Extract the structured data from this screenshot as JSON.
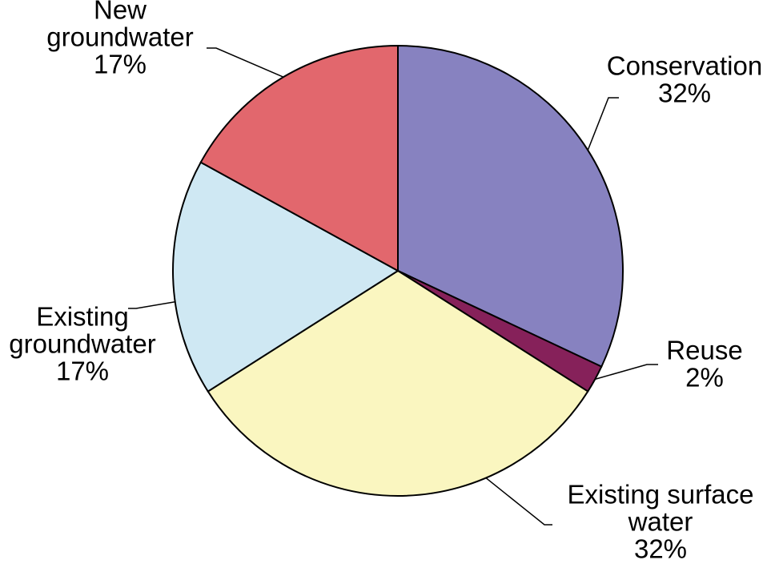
{
  "chart_data": {
    "type": "pie",
    "categories": [
      [
        "Conservation"
      ],
      [
        "Reuse"
      ],
      [
        "Existing surface",
        "water"
      ],
      [
        "Existing",
        "groundwater"
      ],
      [
        "New",
        "groundwater"
      ]
    ],
    "values": [
      32,
      2,
      32,
      17,
      17
    ],
    "value_labels": [
      "32%",
      "2%",
      "32%",
      "17%",
      "17%"
    ],
    "colors": [
      "#8782c0",
      "#86215a",
      "#faf6c0",
      "#cfe8f3",
      "#e2676d"
    ]
  }
}
